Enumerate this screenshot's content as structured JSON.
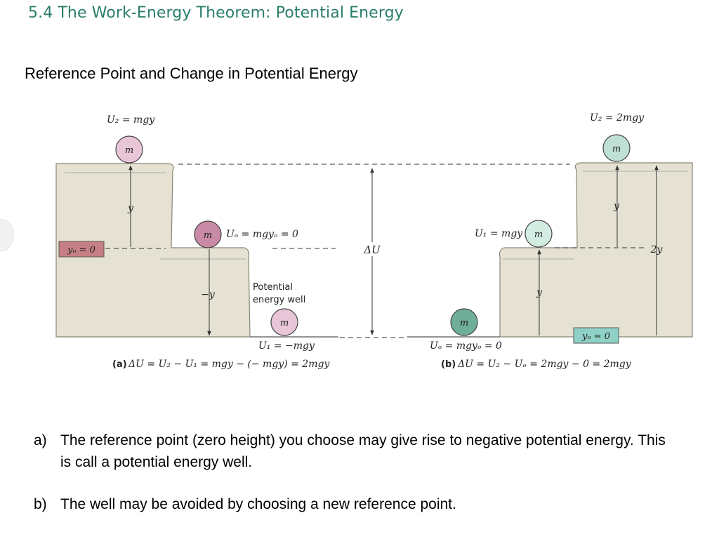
{
  "slide": {
    "title": "5.4 The Work-Energy Theorem: Potential Energy",
    "subtitle": "Reference Point and Change in Potential Energy"
  },
  "colors": {
    "title": "#2a7d6a",
    "ground": "#e6e2d3",
    "ground_edge": "#8a8676",
    "ball_pink": "#e8c6d8",
    "ball_dark_pink": "#c98aa6",
    "ball_teal": "#bfe0d6",
    "ball_dark_teal": "#6fae98",
    "ref_box_a": "#c77f86",
    "ref_box_b": "#8fd0c7"
  },
  "figure_a": {
    "top_energy_label": "U₂ = mgy",
    "ball_label": "m",
    "middle_energy_label": "Uₒ = mgyₒ = 0",
    "height_label": "y",
    "neg_height_label": "−y",
    "reference_label": "yₒ = 0",
    "well_label_line1": "Potential",
    "well_label_line2": "energy well",
    "bottom_energy_label": "U₁ = −mgy",
    "caption_part": "(a)",
    "caption": "ΔU = U₂ − U₁ = mgy − (− mgy) = 2mgy"
  },
  "delta_label": "ΔU",
  "figure_b": {
    "top_energy_label": "U₂ = 2mgy",
    "ball_label": "m",
    "middle_energy_label": "U₁ = mgy",
    "height_label_upper": "y",
    "height_label_lower": "y",
    "total_height_label": "2y",
    "reference_label": "yₒ = 0",
    "bottom_energy_label": "Uₒ = mgyₒ = 0",
    "caption_part": "(b)",
    "caption": "ΔU = U₂ − Uₒ = 2mgy − 0 = 2mgy"
  },
  "points": [
    {
      "marker": "a)",
      "text": "The reference point (zero height) you choose may give rise to negative potential energy. This is call a potential energy well."
    },
    {
      "marker": "b)",
      "text": "The well may be avoided by choosing a new reference point."
    }
  ]
}
